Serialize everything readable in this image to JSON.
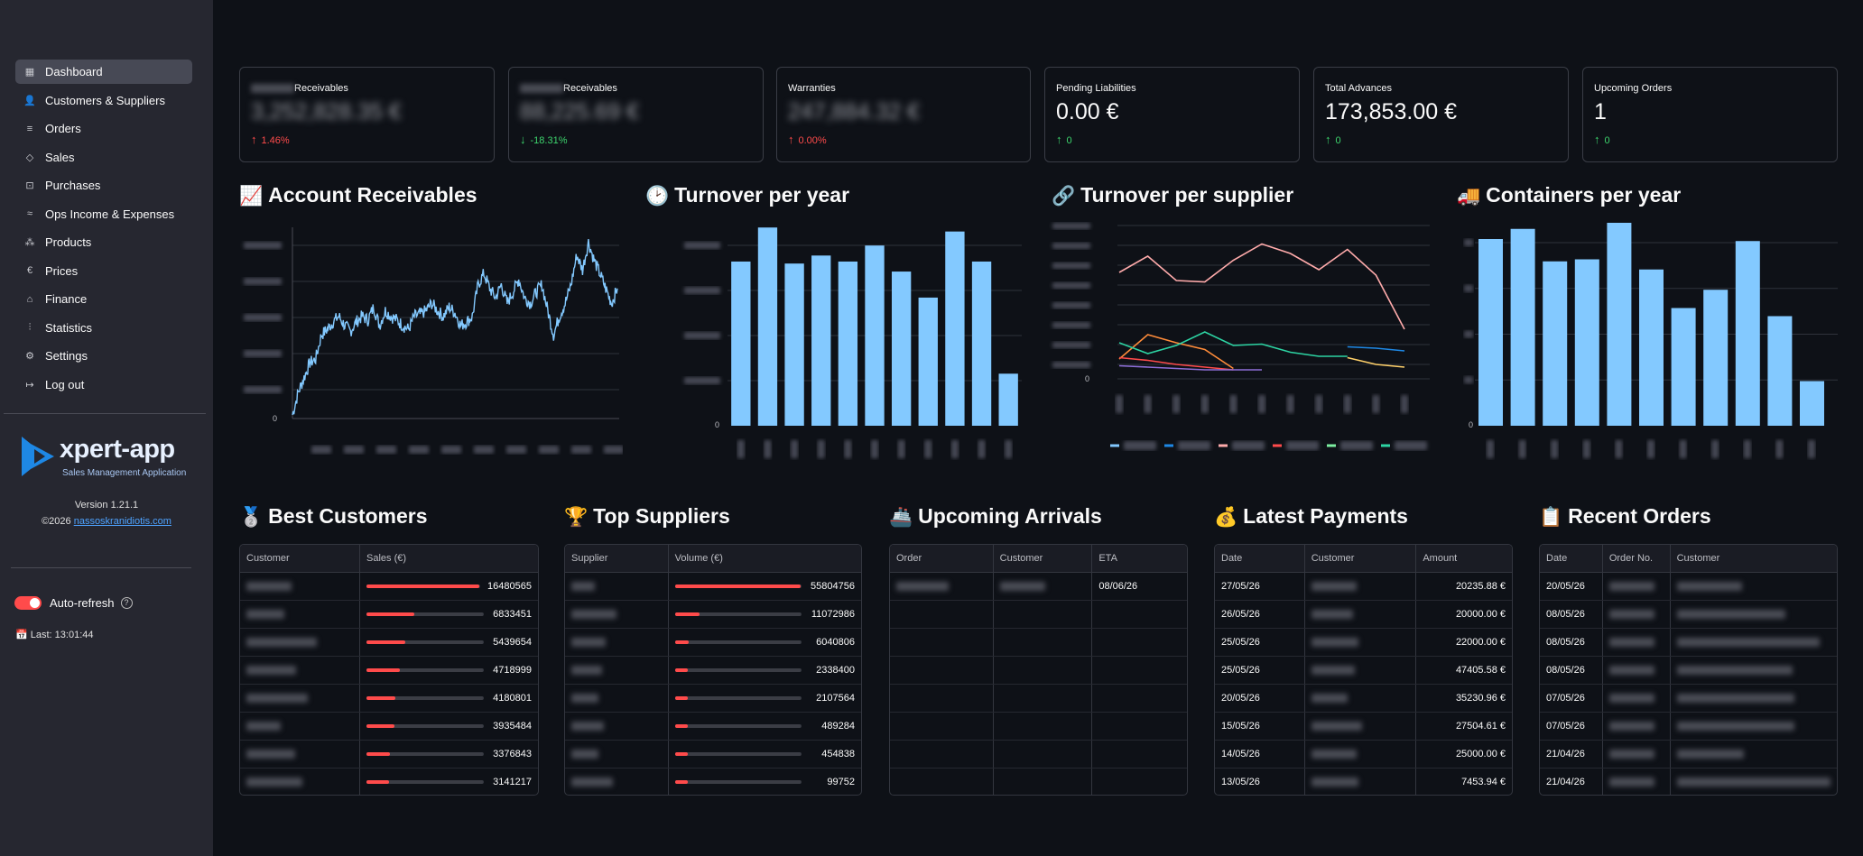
{
  "sidebar": {
    "items": [
      {
        "label": "Dashboard",
        "icon": "dashboard-icon",
        "glyph": "▦",
        "active": true
      },
      {
        "label": "Customers & Suppliers",
        "icon": "users-icon",
        "glyph": "👤",
        "active": false
      },
      {
        "label": "Orders",
        "icon": "orders-icon",
        "glyph": "≡",
        "active": false
      },
      {
        "label": "Sales",
        "icon": "tag-icon",
        "glyph": "◇",
        "active": false
      },
      {
        "label": "Purchases",
        "icon": "cart-icon",
        "glyph": "⊡",
        "active": false
      },
      {
        "label": "Ops Income & Expenses",
        "icon": "wave-icon",
        "glyph": "≈",
        "active": false
      },
      {
        "label": "Products",
        "icon": "boxes-icon",
        "glyph": "⁂",
        "active": false
      },
      {
        "label": "Prices",
        "icon": "euro-icon",
        "glyph": "€",
        "active": false
      },
      {
        "label": "Finance",
        "icon": "bank-icon",
        "glyph": "⌂",
        "active": false
      },
      {
        "label": "Statistics",
        "icon": "stats-icon",
        "glyph": "⫶",
        "active": false
      },
      {
        "label": "Settings",
        "icon": "gear-icon",
        "glyph": "⚙",
        "active": false
      },
      {
        "label": "Log out",
        "icon": "logout-icon",
        "glyph": "↦",
        "active": false
      }
    ],
    "logo_text": "xpert-app",
    "logo_subtitle": "Sales Management Application",
    "version": "Version 1.21.1",
    "copyright": "©2026 ",
    "copyright_link": "nassoskranidiotis.com",
    "auto_refresh_label": "Auto-refresh",
    "last_refresh": "Last: 13:01:44",
    "colors": {
      "accent": "#ff4b4b",
      "logo_blue": "#1e88e5"
    }
  },
  "metrics": [
    {
      "label": "Receivables",
      "label_prefix_hidden": true,
      "value": "3,252,828.35 €",
      "hidden": true,
      "delta": "1.46%",
      "dir": "up",
      "color": "red"
    },
    {
      "label": "Receivables",
      "label_prefix_hidden": true,
      "value": "88,225.69 €",
      "hidden": true,
      "delta": "-18.31%",
      "dir": "down",
      "color": "green"
    },
    {
      "label": "Warranties",
      "label_prefix_hidden": false,
      "value": "247,884.32 €",
      "hidden": true,
      "delta": "0.00%",
      "dir": "up",
      "color": "red"
    },
    {
      "label": "Pending Liabilities",
      "label_prefix_hidden": false,
      "value": "0.00 €",
      "hidden": false,
      "delta": "0",
      "dir": "up",
      "color": "green"
    },
    {
      "label": "Total Advances",
      "label_prefix_hidden": false,
      "value": "173,853.00 €",
      "hidden": false,
      "delta": "0",
      "dir": "up",
      "color": "green"
    },
    {
      "label": "Upcoming Orders",
      "label_prefix_hidden": false,
      "value": "1",
      "hidden": false,
      "delta": "0",
      "dir": "up",
      "color": "green"
    }
  ],
  "headings": {
    "receivables": {
      "emoji": "📈",
      "text": "Account Receivables"
    },
    "turnover_year": {
      "emoji": "🕑",
      "text": "Turnover per year"
    },
    "turnover_supplier": {
      "emoji": "🔗",
      "text": "Turnover per supplier"
    },
    "containers": {
      "emoji": "🚚",
      "text": "Containers per year"
    },
    "best_customers": {
      "emoji": "🥈",
      "text": "Best Customers"
    },
    "top_suppliers": {
      "emoji": "🏆",
      "text": "Top Suppliers"
    },
    "upcoming_arrivals": {
      "emoji": "🚢",
      "text": "Upcoming Arrivals"
    },
    "latest_payments": {
      "emoji": "💰",
      "text": "Latest Payments"
    },
    "recent_orders": {
      "emoji": "📋",
      "text": "Recent Orders"
    }
  },
  "chart_data": [
    {
      "id": "receivables",
      "type": "line",
      "title": "Account Receivables",
      "y_zero_label": "0",
      "color": "#83c9ff",
      "points": [
        0.02,
        0.14,
        0.22,
        0.3,
        0.32,
        0.45,
        0.48,
        0.52,
        0.55,
        0.5,
        0.47,
        0.52,
        0.55,
        0.53,
        0.6,
        0.5,
        0.58,
        0.55,
        0.53,
        0.5,
        0.48,
        0.55,
        0.56,
        0.58,
        0.62,
        0.58,
        0.55,
        0.6,
        0.57,
        0.5,
        0.52,
        0.55,
        0.72,
        0.78,
        0.7,
        0.65,
        0.72,
        0.62,
        0.68,
        0.75,
        0.65,
        0.62,
        0.68,
        0.72,
        0.58,
        0.45,
        0.55,
        0.62,
        0.72,
        0.88,
        0.8,
        0.95,
        0.85,
        0.78,
        0.7,
        0.62,
        0.7
      ]
    },
    {
      "id": "turnover_year",
      "type": "bar",
      "title": "Turnover per year",
      "y_zero_label": "0",
      "color": "#83c9ff",
      "values": [
        0.82,
        0.99,
        0.81,
        0.85,
        0.82,
        0.9,
        0.77,
        0.64,
        0.97,
        0.82,
        0.26
      ]
    },
    {
      "id": "turnover_supplier",
      "type": "line",
      "title": "Turnover per supplier",
      "y_zero_label": "0",
      "series": [
        {
          "color": "#ffabab",
          "values": [
            0.72,
            0.84,
            0.66,
            0.65,
            0.81,
            0.93,
            0.86,
            0.74,
            0.89,
            0.7,
            0.3
          ]
        },
        {
          "color": "#ff8c3a",
          "values": [
            0.08,
            0.26,
            0.2,
            0.15,
            0.01
          ]
        },
        {
          "color": "#2dd4a3",
          "values": [
            0.2,
            0.12,
            0.18,
            0.28,
            0.18,
            0.19,
            0.13,
            0.1,
            0.1
          ]
        },
        {
          "color": "#ff4b4b",
          "values": [
            0.09,
            0.07,
            0.04,
            0.02,
            0.0
          ]
        },
        {
          "color": "#8e6fd8",
          "values": [
            0.03,
            0.02,
            0.01,
            0.0,
            0.0,
            0.0
          ]
        },
        {
          "color": "#1e88e5",
          "values": [
            0.17,
            0.16,
            0.14
          ]
        },
        {
          "color": "#ffd16a",
          "values": [
            0.09,
            0.04,
            0.02
          ]
        }
      ],
      "legend_colors": [
        "#83c9ff",
        "#1e88e5",
        "#ffabab",
        "#ff4b4b",
        "#7defa1",
        "#2dd4a3"
      ]
    },
    {
      "id": "containers",
      "type": "bar",
      "title": "Containers per year",
      "y_zero_label": "0",
      "color": "#83c9ff",
      "values": [
        0.92,
        0.97,
        0.81,
        0.82,
        1.0,
        0.77,
        0.58,
        0.67,
        0.91,
        0.54,
        0.22
      ]
    }
  ],
  "best_customers": {
    "headers": [
      "Customer",
      "Sales (€)"
    ],
    "rows": [
      {
        "sales": "16480565",
        "fraction": 1.0
      },
      {
        "sales": "6833451",
        "fraction": 0.41
      },
      {
        "sales": "5439654",
        "fraction": 0.33
      },
      {
        "sales": "4718999",
        "fraction": 0.29
      },
      {
        "sales": "4180801",
        "fraction": 0.25
      },
      {
        "sales": "3935484",
        "fraction": 0.24
      },
      {
        "sales": "3376843",
        "fraction": 0.2
      },
      {
        "sales": "3141217",
        "fraction": 0.19
      }
    ]
  },
  "top_suppliers": {
    "headers": [
      "Supplier",
      "Volume (€)"
    ],
    "rows": [
      {
        "volume": "55804756",
        "fraction": 1.0
      },
      {
        "volume": "11072986",
        "fraction": 0.2
      },
      {
        "volume": "6040806",
        "fraction": 0.11
      },
      {
        "volume": "2338400",
        "fraction": 0.04
      },
      {
        "volume": "2107564",
        "fraction": 0.04
      },
      {
        "volume": "489284",
        "fraction": 0.01
      },
      {
        "volume": "454838",
        "fraction": 0.01
      },
      {
        "volume": "99752",
        "fraction": 0.0
      }
    ]
  },
  "upcoming_arrivals": {
    "headers": [
      "Order",
      "Customer",
      "ETA"
    ],
    "rows": [
      {
        "eta": "08/06/26"
      }
    ],
    "empty_rows": 7
  },
  "latest_payments": {
    "headers": [
      "Date",
      "Customer",
      "Amount"
    ],
    "rows": [
      {
        "date": "27/05/26",
        "amount": "20235.88 €"
      },
      {
        "date": "26/05/26",
        "amount": "20000.00 €"
      },
      {
        "date": "25/05/26",
        "amount": "22000.00 €"
      },
      {
        "date": "25/05/26",
        "amount": "47405.58 €"
      },
      {
        "date": "20/05/26",
        "amount": "35230.96 €"
      },
      {
        "date": "15/05/26",
        "amount": "27504.61 €"
      },
      {
        "date": "14/05/26",
        "amount": "25000.00 €"
      },
      {
        "date": "13/05/26",
        "amount": "7453.94 €"
      }
    ]
  },
  "recent_orders": {
    "headers": [
      "Date",
      "Order No.",
      "Customer"
    ],
    "rows": [
      {
        "date": "20/05/26"
      },
      {
        "date": "08/05/26"
      },
      {
        "date": "08/05/26"
      },
      {
        "date": "08/05/26"
      },
      {
        "date": "07/05/26"
      },
      {
        "date": "07/05/26"
      },
      {
        "date": "21/04/26"
      },
      {
        "date": "21/04/26"
      }
    ]
  }
}
